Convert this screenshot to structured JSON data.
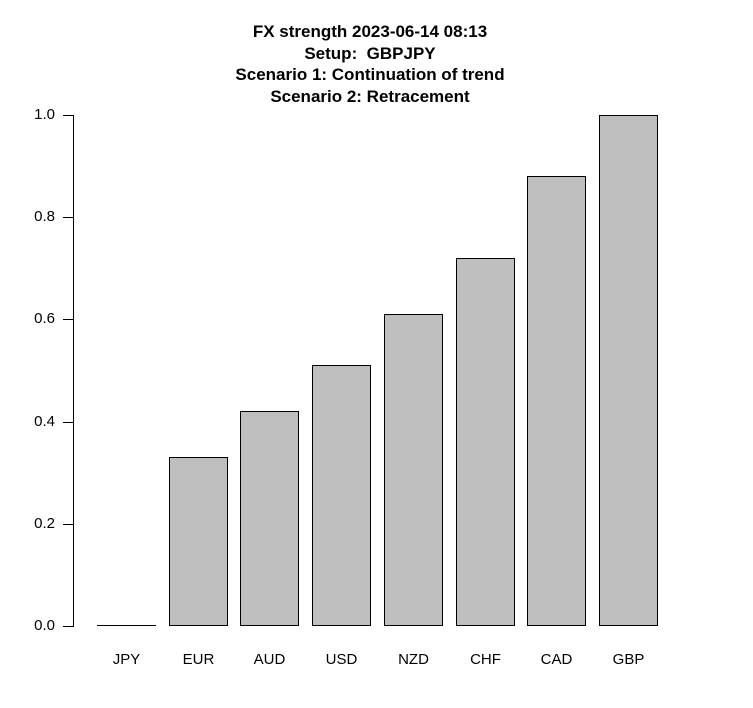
{
  "chart_data": {
    "type": "bar",
    "title_lines": [
      "FX strength 2023-06-14 08:13",
      "Setup:  GBPJPY",
      "Scenario 1: Continuation of trend",
      "Scenario 2: Retracement"
    ],
    "categories": [
      "JPY",
      "EUR",
      "AUD",
      "USD",
      "NZD",
      "CHF",
      "CAD",
      "GBP"
    ],
    "values": [
      0.0,
      0.33,
      0.42,
      0.51,
      0.61,
      0.72,
      0.88,
      1.0
    ],
    "xlabel": "",
    "ylabel": "",
    "ylim": [
      0,
      1
    ],
    "yticks": [
      0.0,
      0.2,
      0.4,
      0.6,
      0.8,
      1.0
    ],
    "ytick_labels": [
      "0.0",
      "0.2",
      "0.4",
      "0.6",
      "0.8",
      "1.0"
    ],
    "grid": false,
    "legend": null,
    "colors": {
      "bar_fill": "#BEBEBE",
      "bar_border": "#000000",
      "axis": "#000000",
      "text": "#000000",
      "background": "#FFFFFF"
    }
  }
}
